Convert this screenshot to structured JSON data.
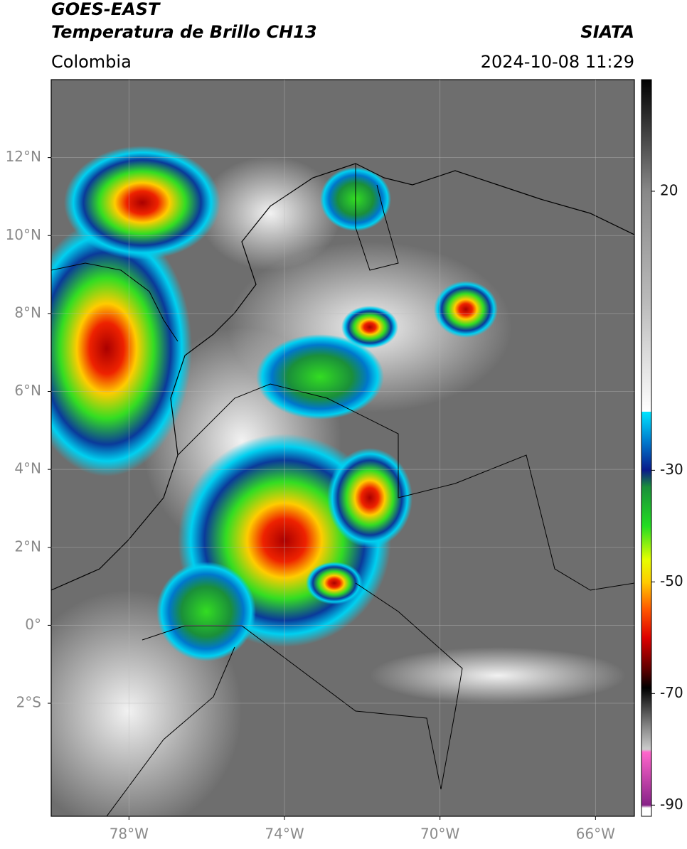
{
  "header": {
    "title": "GOES-EAST",
    "subtitle": "Temperatura de Brillo CH13",
    "region": "Colombia",
    "source": "SIATA",
    "datetime": "2024-10-08 11:29"
  },
  "map": {
    "xlim": [
      -80,
      -65
    ],
    "ylim": [
      -4.9,
      14
    ],
    "lat_ticks": [
      {
        "value": 12,
        "label": "12°N"
      },
      {
        "value": 10,
        "label": "10°N"
      },
      {
        "value": 8,
        "label": "8°N"
      },
      {
        "value": 6,
        "label": "6°N"
      },
      {
        "value": 4,
        "label": "4°N"
      },
      {
        "value": 2,
        "label": "2°N"
      },
      {
        "value": 0,
        "label": "0°"
      },
      {
        "value": -2,
        "label": "2°S"
      }
    ],
    "lon_ticks": [
      {
        "value": -78,
        "label": "78°W"
      },
      {
        "value": -74,
        "label": "74°W"
      },
      {
        "value": -70,
        "label": "70°W"
      },
      {
        "value": -66,
        "label": "66°W"
      }
    ]
  },
  "colorbar": {
    "lim": [
      -92,
      40
    ],
    "ticks": [
      20,
      -30,
      -50,
      -70,
      -90
    ],
    "stops": [
      [
        40,
        "#000000"
      ],
      [
        30,
        "#444444"
      ],
      [
        20,
        "#888888"
      ],
      [
        0,
        "#bbbbbb"
      ],
      [
        -19.5,
        "#ffffff"
      ],
      [
        -19.5,
        "#00e5ff"
      ],
      [
        -25,
        "#0077cc"
      ],
      [
        -30,
        "#0a1a8a"
      ],
      [
        -33,
        "#1a8f3a"
      ],
      [
        -40,
        "#22dd22"
      ],
      [
        -46,
        "#e6ff00"
      ],
      [
        -50,
        "#ffcc00"
      ],
      [
        -55,
        "#ff5500"
      ],
      [
        -60,
        "#dd0000"
      ],
      [
        -66,
        "#550000"
      ],
      [
        -69,
        "#000000"
      ],
      [
        -76,
        "#888888"
      ],
      [
        -80,
        "#cccccc"
      ],
      [
        -80.5,
        "#ff66cc"
      ],
      [
        -90,
        "#882288"
      ],
      [
        -90.5,
        "#ffffff"
      ],
      [
        -92,
        "#ffffff"
      ]
    ]
  }
}
